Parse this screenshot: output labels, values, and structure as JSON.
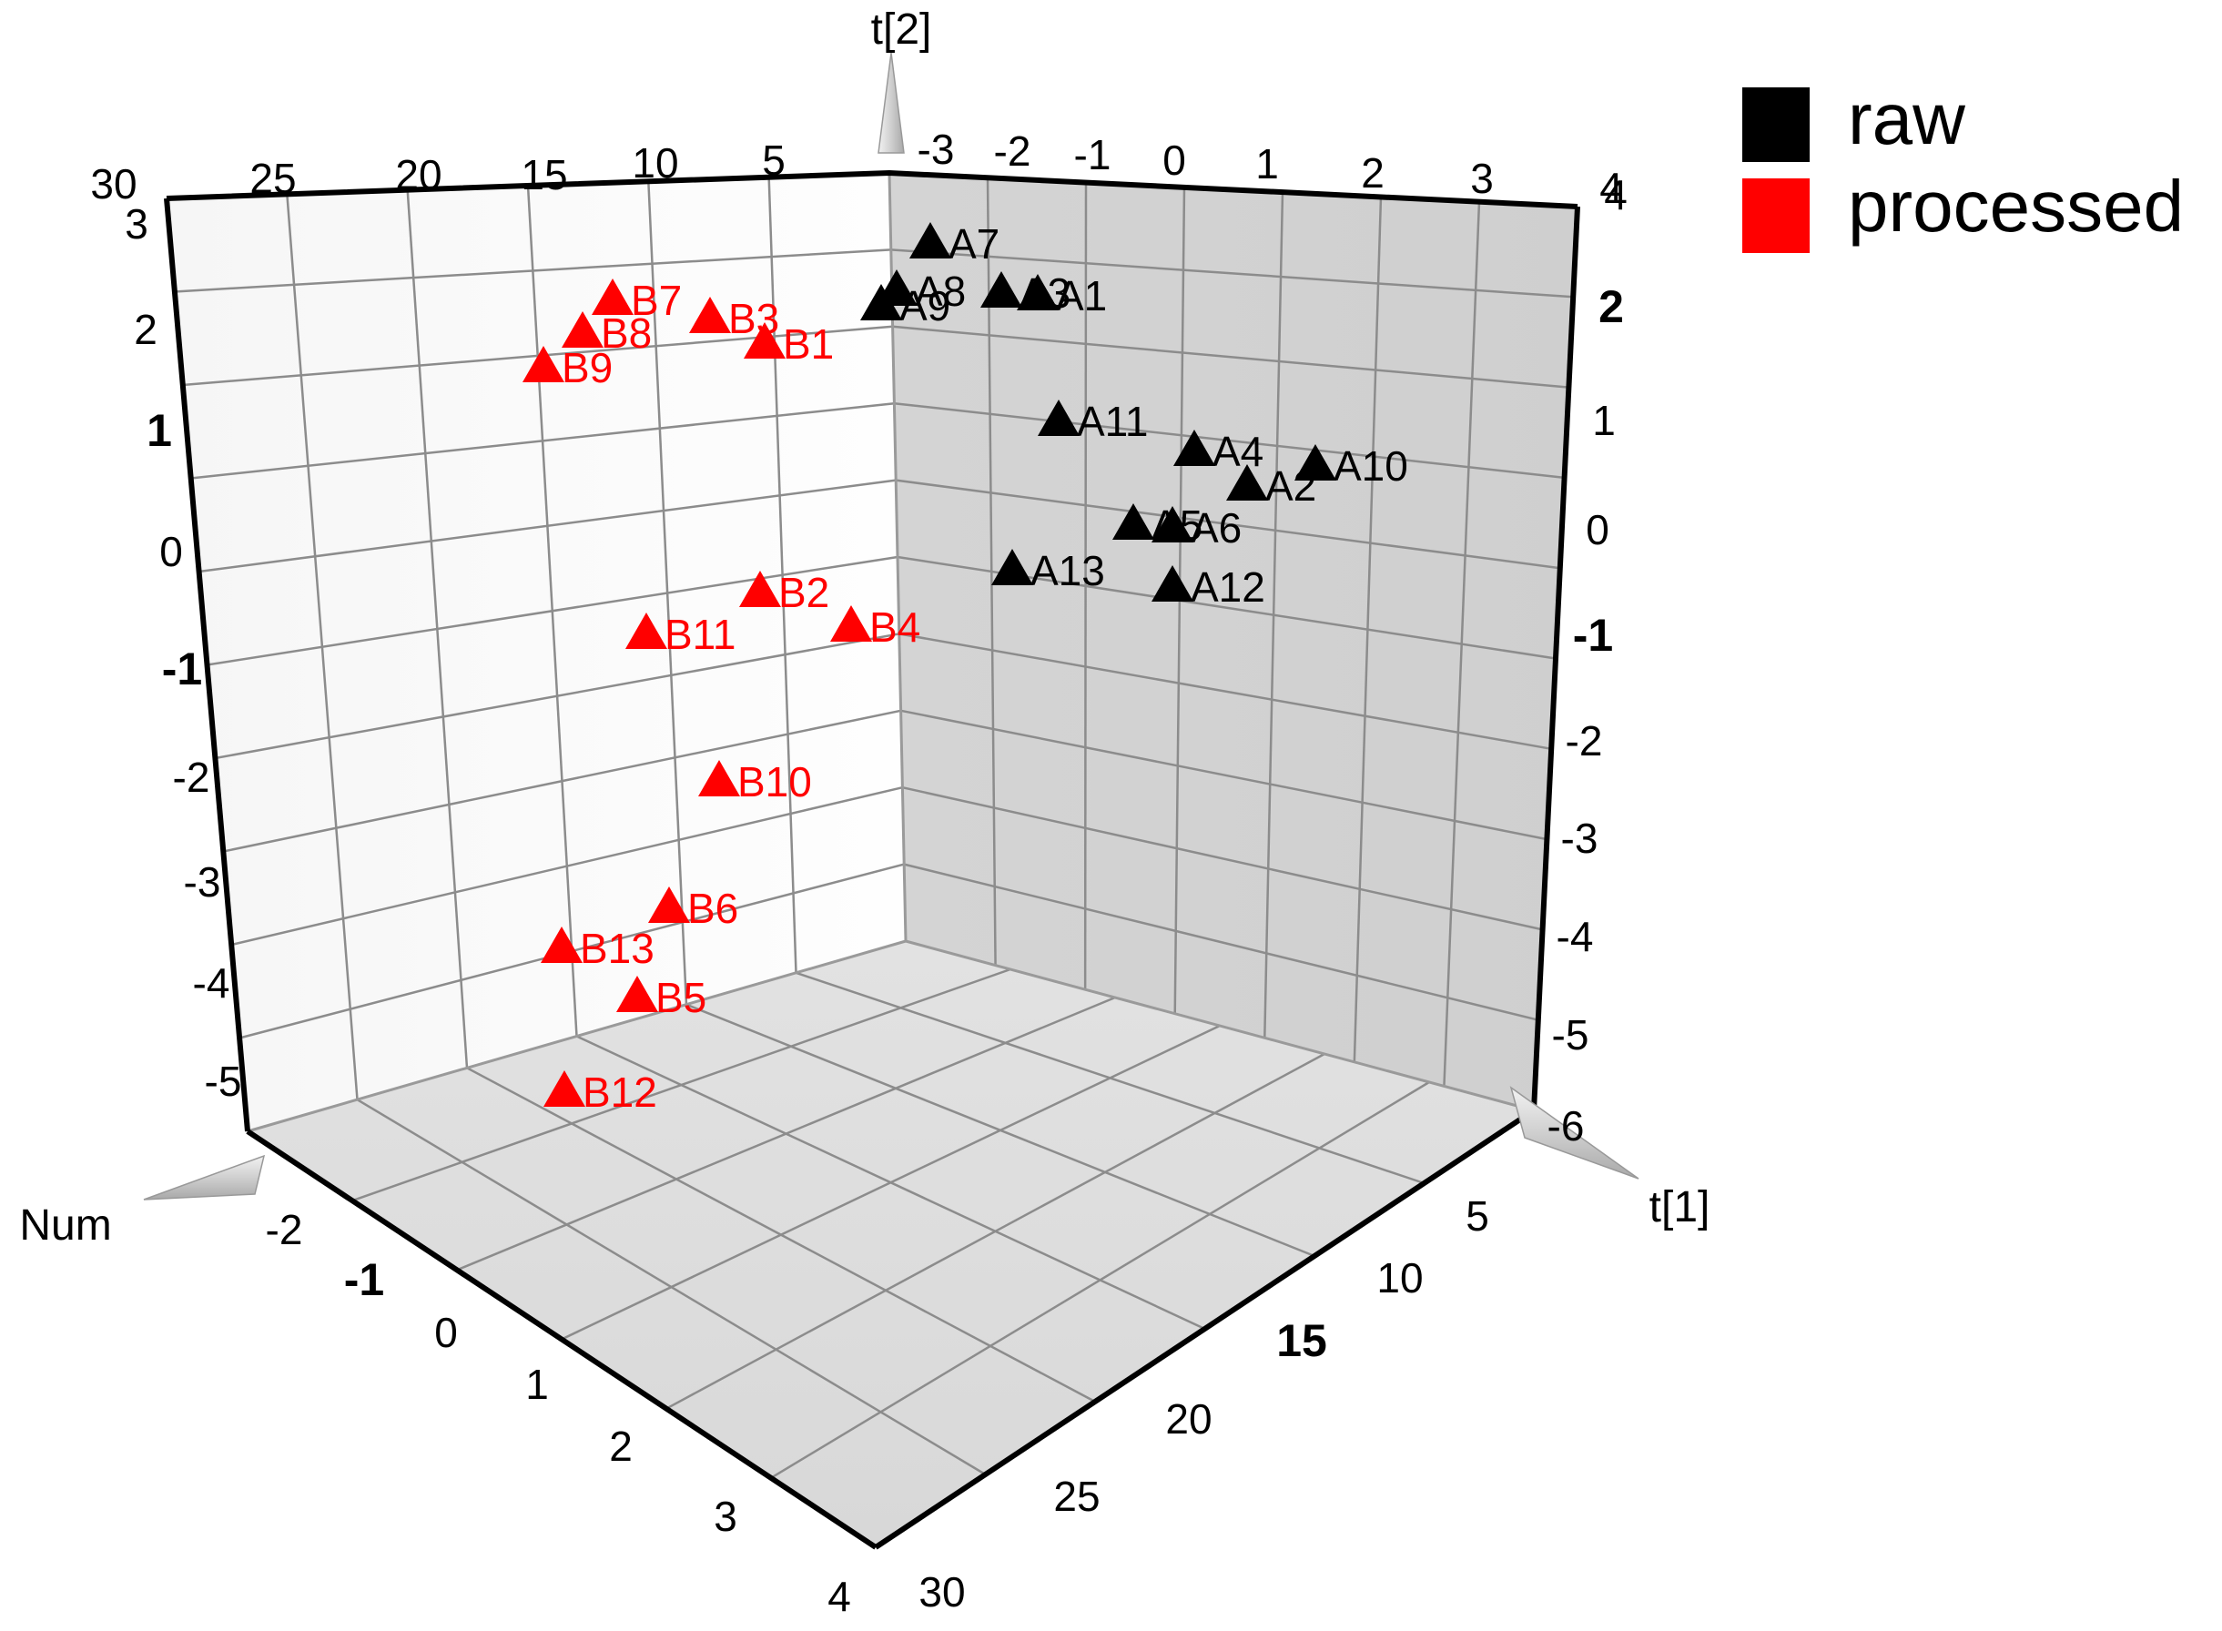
{
  "chart_data": {
    "type": "scatter",
    "subtype": "3d-scatter",
    "axes": {
      "x": {
        "label": "t[1]",
        "ticks": [
          "5",
          "10",
          "15",
          "20",
          "25",
          "30"
        ],
        "range": [
          0,
          30
        ]
      },
      "y": {
        "label": "t[2]",
        "ticks_left": [
          "3",
          "2",
          "1",
          "0",
          "-1",
          "-2",
          "-3",
          "-4",
          "-5"
        ],
        "ticks_right": [
          "4",
          "2",
          "1",
          "0",
          "-1",
          "-2",
          "-3",
          "-4",
          "-5",
          "-6"
        ],
        "range": [
          -6,
          4
        ]
      },
      "z": {
        "label": "Num",
        "ticks": [
          "-2",
          "-1",
          "0",
          "1",
          "2",
          "3",
          "4"
        ],
        "range": [
          -2,
          4
        ]
      },
      "top_ticks": [
        "30",
        "25",
        "20",
        "15",
        "10",
        "5",
        "-3",
        "-2",
        "-1",
        "0",
        "1",
        "2",
        "3",
        "4"
      ]
    },
    "grid": true,
    "legend": {
      "placement": "top-right"
    },
    "series": [
      {
        "name": "raw",
        "color": "#000000",
        "marker": "triangle",
        "points": [
          {
            "label": "A7"
          },
          {
            "label": "A8"
          },
          {
            "label": "A3"
          },
          {
            "label": "A1"
          },
          {
            "label": "A9"
          },
          {
            "label": "A11"
          },
          {
            "label": "A4"
          },
          {
            "label": "A10"
          },
          {
            "label": "A2"
          },
          {
            "label": "A5"
          },
          {
            "label": "A6"
          },
          {
            "label": "A13"
          },
          {
            "label": "A12"
          }
        ]
      },
      {
        "name": "processed",
        "color": "#ff0000",
        "marker": "triangle",
        "points": [
          {
            "label": "B7"
          },
          {
            "label": "B8"
          },
          {
            "label": "B3"
          },
          {
            "label": "B1"
          },
          {
            "label": "B9"
          },
          {
            "label": "B2"
          },
          {
            "label": "B4"
          },
          {
            "label": "B11"
          },
          {
            "label": "B10"
          },
          {
            "label": "B6"
          },
          {
            "label": "B13"
          },
          {
            "label": "B5"
          },
          {
            "label": "B12"
          }
        ]
      }
    ]
  }
}
